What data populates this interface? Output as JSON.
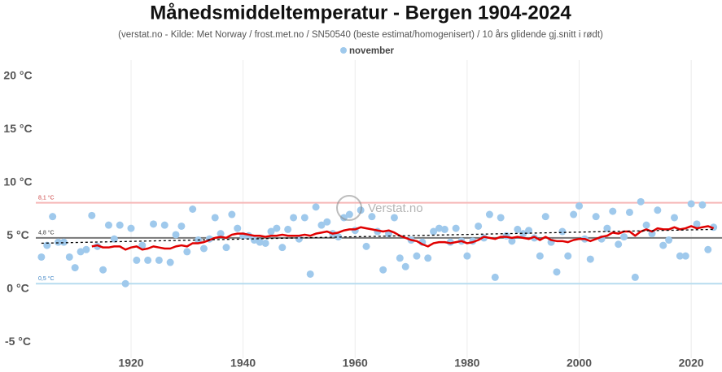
{
  "chart_data": {
    "type": "scatter",
    "title": "Månedsmiddeltemperatur - Bergen 1904-2024",
    "subtitle": "(verstat.no - Kilde: Met Norway / frost.met.no / SN50540 (beste estimat/homogenisert) / 10 års glidende gj.snitt i rødt)",
    "watermark": "Verstat.no",
    "x": [
      1904,
      1905,
      1906,
      1907,
      1908,
      1909,
      1910,
      1911,
      1912,
      1913,
      1914,
      1915,
      1916,
      1917,
      1918,
      1919,
      1920,
      1921,
      1922,
      1923,
      1924,
      1925,
      1926,
      1927,
      1928,
      1929,
      1930,
      1931,
      1932,
      1933,
      1934,
      1935,
      1936,
      1937,
      1938,
      1939,
      1940,
      1941,
      1942,
      1943,
      1944,
      1945,
      1946,
      1947,
      1948,
      1949,
      1950,
      1951,
      1952,
      1953,
      1954,
      1955,
      1956,
      1957,
      1958,
      1959,
      1960,
      1961,
      1962,
      1963,
      1964,
      1965,
      1966,
      1967,
      1968,
      1969,
      1970,
      1971,
      1972,
      1973,
      1974,
      1975,
      1976,
      1977,
      1978,
      1979,
      1980,
      1981,
      1982,
      1983,
      1984,
      1985,
      1986,
      1987,
      1988,
      1989,
      1990,
      1991,
      1992,
      1993,
      1994,
      1995,
      1996,
      1997,
      1998,
      1999,
      2000,
      2001,
      2002,
      2003,
      2004,
      2005,
      2006,
      2007,
      2008,
      2009,
      2010,
      2011,
      2012,
      2013,
      2014,
      2015,
      2016,
      2017,
      2018,
      2019,
      2020,
      2021,
      2022,
      2023,
      2024
    ],
    "series": [
      {
        "name": "november",
        "color": "#9fc9ec",
        "values": [
          3.0,
          4.1,
          6.8,
          4.4,
          4.4,
          3.0,
          2.0,
          3.5,
          3.7,
          6.9,
          4.0,
          1.8,
          6.0,
          4.7,
          6.0,
          0.5,
          5.7,
          2.7,
          4.1,
          2.7,
          6.1,
          2.7,
          6.0,
          2.5,
          5.1,
          5.9,
          3.5,
          7.5,
          4.6,
          3.8,
          4.7,
          6.7,
          5.2,
          3.9,
          7.0,
          5.7,
          5.0,
          5.0,
          4.6,
          4.4,
          4.3,
          5.4,
          5.7,
          3.9,
          5.6,
          6.7,
          4.7,
          6.7,
          1.4,
          7.7,
          6.0,
          6.3,
          5.2,
          4.9,
          6.7,
          7.0,
          5.5,
          7.4,
          4.0,
          6.8,
          5.4,
          1.8,
          5.2,
          6.7,
          2.9,
          2.1,
          4.6,
          3.1,
          4.4,
          2.9,
          5.4,
          5.7,
          5.6,
          4.4,
          5.7,
          4.5,
          3.1,
          4.5,
          5.9,
          4.8,
          7.0,
          1.1,
          6.7,
          5.0,
          4.5,
          5.6,
          5.2,
          5.5,
          4.8,
          3.1,
          6.8,
          4.4,
          1.6,
          5.4,
          3.1,
          7.0,
          7.8,
          4.7,
          2.8,
          6.8,
          4.7,
          5.7,
          7.3,
          4.2,
          4.9,
          7.2,
          1.1,
          8.2,
          6.0,
          5.2,
          7.4,
          4.1,
          4.6,
          6.7,
          3.1,
          3.1,
          8.0,
          6.1,
          7.9,
          3.7,
          5.8
        ]
      },
      {
        "color": "#e00000",
        "values": [
          null,
          null,
          null,
          null,
          null,
          null,
          null,
          null,
          null,
          4.0,
          4.1,
          3.9,
          3.9,
          4.0,
          4.0,
          3.7,
          3.9,
          4.0,
          3.7,
          3.8,
          4.0,
          3.9,
          3.8,
          3.8,
          4.0,
          4.1,
          4.0,
          4.3,
          4.3,
          4.4,
          4.6,
          4.8,
          4.9,
          4.8,
          5.1,
          5.2,
          5.2,
          5.1,
          5.0,
          5.0,
          4.9,
          5.0,
          5.0,
          5.1,
          5.0,
          5.0,
          5.0,
          5.1,
          5.0,
          5.2,
          5.3,
          5.4,
          5.2,
          5.3,
          5.5,
          5.6,
          5.6,
          5.8,
          5.7,
          5.6,
          5.5,
          5.4,
          5.5,
          5.3,
          5.0,
          4.8,
          4.6,
          4.5,
          4.2,
          4.0,
          4.3,
          4.4,
          4.4,
          4.3,
          4.4,
          4.5,
          4.3,
          4.4,
          4.6,
          4.9,
          4.8,
          4.7,
          4.9,
          4.9,
          4.8,
          4.9,
          4.8,
          4.7,
          4.9,
          4.6,
          4.9,
          4.6,
          4.5,
          4.5,
          4.4,
          4.6,
          4.7,
          4.7,
          4.5,
          4.7,
          4.9,
          5.0,
          5.3,
          5.2,
          5.4,
          5.4,
          5.0,
          5.4,
          5.6,
          5.4,
          5.7,
          5.6,
          5.6,
          5.8,
          5.6,
          5.7,
          5.9,
          5.7,
          5.8,
          5.9,
          5.7
        ]
      }
    ],
    "trend": {
      "x": [
        1904,
        2024
      ],
      "values": [
        4.3,
        5.6
      ],
      "color": "#000000"
    },
    "reference_lines": [
      {
        "value": 8.1,
        "label": "8,1 °C",
        "color": "#f6b8b8",
        "label_color": "#c44"
      },
      {
        "value": 4.8,
        "label": "4,8 °C",
        "color": "#777777",
        "label_color": "#333"
      },
      {
        "value": 0.5,
        "label": "0,5 °C",
        "color": "#b7dcef",
        "label_color": "#3b82c4"
      }
    ],
    "xlim": [
      1903,
      2025.5
    ],
    "ylim": [
      -6.5,
      21.5
    ],
    "xticks": [
      1920,
      1940,
      1960,
      1980,
      2000,
      2020
    ],
    "yticks": [
      {
        "value": -5,
        "label": "-5 °C"
      },
      {
        "value": 0,
        "label": "0 °C"
      },
      {
        "value": 5,
        "label": "5 °C"
      },
      {
        "value": 10,
        "label": "10 °C"
      },
      {
        "value": 15,
        "label": "15 °C"
      },
      {
        "value": 20,
        "label": "20 °C"
      }
    ],
    "grid": "x"
  }
}
